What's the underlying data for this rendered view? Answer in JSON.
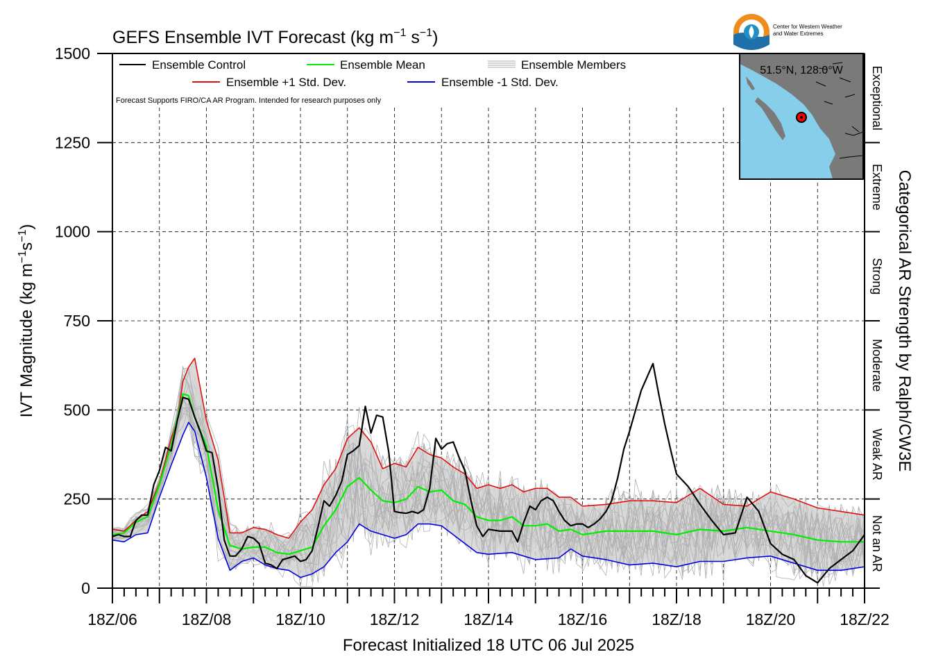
{
  "title_main": "GEFS Ensemble IVT Forecast (kg m",
  "title_exp1": "−1",
  "title_mid": " s",
  "title_exp2": "−1",
  "title_end": ")",
  "ylabel_main": "IVT Magnitude (kg m",
  "ylabel_exp1": "−1",
  "ylabel_mid": "s",
  "ylabel_exp2": "−1",
  "ylabel_end": ")",
  "xlabel": "Forecast Initialized 18 UTC 06 Jul 2025",
  "right_axis_label": "Categorical AR Strength by Ralph/CW3E",
  "note": "Forecast Supports FIRO/CA AR Program. Intended for research purposes only",
  "logo_text_line1": "Center for Western Weather",
  "logo_text_line2": "and Water Extremes",
  "inset_location": "51.5°N, 128.0°W",
  "legend": {
    "control": "Ensemble Control",
    "mean": "Ensemble Mean",
    "members": "Ensemble Members",
    "plus_sd": "Ensemble +1 Std. Dev.",
    "minus_sd": "Ensemble -1 Std. Dev."
  },
  "colors": {
    "control": "#000000",
    "mean": "#00ee00",
    "members": "#aaaaaa",
    "plus_sd": "#e01010",
    "minus_sd": "#0000dd",
    "spread_fill": "#d3d3d3",
    "ocean": "#87ceeb",
    "land": "#7a7a7a"
  },
  "chart_data": {
    "type": "line",
    "x_unit": "forecast day (days since 18Z/06)",
    "xlim": [
      0,
      16
    ],
    "ylim": [
      0,
      1500
    ],
    "x_ticks": [
      0,
      2,
      4,
      6,
      8,
      10,
      12,
      14,
      16
    ],
    "x_tick_labels": [
      "18Z/06",
      "18Z/08",
      "18Z/10",
      "18Z/12",
      "18Z/14",
      "18Z/16",
      "18Z/18",
      "18Z/20",
      "18Z/22"
    ],
    "y_ticks": [
      0,
      250,
      500,
      750,
      1000,
      1250,
      1500
    ],
    "y_tick_labels": [
      "0",
      "250",
      "500",
      "750",
      "1000",
      "1250",
      "1500"
    ],
    "grid": true,
    "legend_position": "top-left",
    "categories": [
      {
        "label": "Not an AR",
        "from": 0,
        "to": 250
      },
      {
        "label": "Weak AR",
        "from": 250,
        "to": 500
      },
      {
        "label": "Moderate",
        "from": 500,
        "to": 750
      },
      {
        "label": "Strong",
        "from": 750,
        "to": 1000
      },
      {
        "label": "Extreme",
        "from": 1000,
        "to": 1250
      },
      {
        "label": "Exceptional",
        "from": 1250,
        "to": 1500
      }
    ],
    "series": [
      {
        "name": "Ensemble Control",
        "points": [
          [
            0,
            145
          ],
          [
            0.13,
            150
          ],
          [
            0.25,
            145
          ],
          [
            0.38,
            145
          ],
          [
            0.5,
            190
          ],
          [
            0.62,
            205
          ],
          [
            0.75,
            205
          ],
          [
            0.88,
            290
          ],
          [
            1,
            330
          ],
          [
            1.13,
            395
          ],
          [
            1.25,
            385
          ],
          [
            1.38,
            470
          ],
          [
            1.5,
            535
          ],
          [
            1.62,
            530
          ],
          [
            1.75,
            480
          ],
          [
            1.88,
            435
          ],
          [
            2,
            385
          ],
          [
            2.12,
            380
          ],
          [
            2.25,
            280
          ],
          [
            2.38,
            135
          ],
          [
            2.5,
            90
          ],
          [
            2.62,
            90
          ],
          [
            2.75,
            110
          ],
          [
            2.88,
            145
          ],
          [
            3,
            140
          ],
          [
            3.12,
            125
          ],
          [
            3.25,
            70
          ],
          [
            3.38,
            65
          ],
          [
            3.5,
            55
          ],
          [
            3.62,
            80
          ],
          [
            3.75,
            85
          ],
          [
            3.88,
            90
          ],
          [
            4,
            75
          ],
          [
            4.12,
            80
          ],
          [
            4.25,
            105
          ],
          [
            4.38,
            175
          ],
          [
            4.5,
            245
          ],
          [
            4.62,
            230
          ],
          [
            4.75,
            260
          ],
          [
            4.88,
            300
          ],
          [
            5,
            375
          ],
          [
            5.12,
            385
          ],
          [
            5.25,
            400
          ],
          [
            5.38,
            510
          ],
          [
            5.5,
            435
          ],
          [
            5.62,
            485
          ],
          [
            5.75,
            480
          ],
          [
            5.88,
            380
          ],
          [
            6,
            215
          ],
          [
            6.12,
            212
          ],
          [
            6.25,
            210
          ],
          [
            6.38,
            215
          ],
          [
            6.5,
            210
          ],
          [
            6.62,
            220
          ],
          [
            6.75,
            280
          ],
          [
            6.88,
            420
          ],
          [
            7,
            390
          ],
          [
            7.12,
            405
          ],
          [
            7.25,
            410
          ],
          [
            7.38,
            365
          ],
          [
            7.5,
            330
          ],
          [
            7.62,
            250
          ],
          [
            7.75,
            175
          ],
          [
            7.88,
            145
          ],
          [
            8,
            165
          ],
          [
            8.25,
            160
          ],
          [
            8.5,
            160
          ],
          [
            8.62,
            130
          ],
          [
            8.75,
            185
          ],
          [
            8.88,
            230
          ],
          [
            9,
            220
          ],
          [
            9.12,
            245
          ],
          [
            9.25,
            255
          ],
          [
            9.38,
            245
          ],
          [
            9.5,
            215
          ],
          [
            9.62,
            190
          ],
          [
            9.75,
            175
          ],
          [
            9.88,
            180
          ],
          [
            10,
            180
          ],
          [
            10.12,
            170
          ],
          [
            10.25,
            180
          ],
          [
            10.38,
            195
          ],
          [
            10.5,
            215
          ],
          [
            10.62,
            245
          ],
          [
            10.75,
            310
          ],
          [
            10.88,
            390
          ],
          [
            11,
            440
          ],
          [
            11.25,
            555
          ],
          [
            11.5,
            630
          ],
          [
            11.62,
            545
          ],
          [
            11.75,
            460
          ],
          [
            11.88,
            385
          ],
          [
            12,
            320
          ],
          [
            12.25,
            285
          ],
          [
            12.5,
            235
          ],
          [
            12.75,
            190
          ],
          [
            13,
            150
          ],
          [
            13.25,
            155
          ],
          [
            13.5,
            255
          ],
          [
            13.75,
            215
          ],
          [
            14,
            125
          ],
          [
            14.25,
            95
          ],
          [
            14.5,
            80
          ],
          [
            14.75,
            35
          ],
          [
            15,
            15
          ],
          [
            15.25,
            55
          ],
          [
            15.5,
            80
          ],
          [
            15.75,
            105
          ],
          [
            16,
            150
          ]
        ]
      },
      {
        "name": "Ensemble Mean",
        "points": [
          [
            0,
            150
          ],
          [
            0.25,
            155
          ],
          [
            0.5,
            185
          ],
          [
            0.75,
            200
          ],
          [
            1,
            290
          ],
          [
            1.25,
            400
          ],
          [
            1.5,
            545
          ],
          [
            1.62,
            540
          ],
          [
            1.75,
            480
          ],
          [
            2,
            400
          ],
          [
            2.25,
            220
          ],
          [
            2.5,
            120
          ],
          [
            2.75,
            110
          ],
          [
            3,
            115
          ],
          [
            3.25,
            115
          ],
          [
            3.5,
            100
          ],
          [
            3.75,
            95
          ],
          [
            4,
            105
          ],
          [
            4.25,
            115
          ],
          [
            4.5,
            175
          ],
          [
            4.75,
            220
          ],
          [
            5,
            285
          ],
          [
            5.25,
            310
          ],
          [
            5.5,
            275
          ],
          [
            5.75,
            245
          ],
          [
            6,
            240
          ],
          [
            6.25,
            250
          ],
          [
            6.5,
            285
          ],
          [
            6.75,
            270
          ],
          [
            7,
            275
          ],
          [
            7.25,
            245
          ],
          [
            7.5,
            235
          ],
          [
            7.75,
            200
          ],
          [
            8,
            190
          ],
          [
            8.25,
            190
          ],
          [
            8.5,
            200
          ],
          [
            8.75,
            175
          ],
          [
            9,
            175
          ],
          [
            9.25,
            180
          ],
          [
            9.5,
            160
          ],
          [
            9.75,
            165
          ],
          [
            10,
            150
          ],
          [
            10.5,
            160
          ],
          [
            11,
            160
          ],
          [
            11.5,
            160
          ],
          [
            12,
            150
          ],
          [
            12.5,
            165
          ],
          [
            13,
            160
          ],
          [
            13.5,
            170
          ],
          [
            14,
            160
          ],
          [
            14.5,
            150
          ],
          [
            15,
            135
          ],
          [
            15.5,
            130
          ],
          [
            16,
            130
          ]
        ]
      },
      {
        "name": "Ensemble +1 Std. Dev.",
        "points": [
          [
            0,
            165
          ],
          [
            0.25,
            160
          ],
          [
            0.5,
            190
          ],
          [
            0.75,
            215
          ],
          [
            1,
            295
          ],
          [
            1.25,
            420
          ],
          [
            1.38,
            470
          ],
          [
            1.5,
            580
          ],
          [
            1.62,
            620
          ],
          [
            1.75,
            645
          ],
          [
            2,
            470
          ],
          [
            2.25,
            360
          ],
          [
            2.5,
            155
          ],
          [
            2.75,
            155
          ],
          [
            3,
            170
          ],
          [
            3.25,
            165
          ],
          [
            3.5,
            150
          ],
          [
            3.75,
            140
          ],
          [
            4,
            185
          ],
          [
            4.25,
            220
          ],
          [
            4.5,
            290
          ],
          [
            4.75,
            335
          ],
          [
            5,
            420
          ],
          [
            5.25,
            450
          ],
          [
            5.5,
            410
          ],
          [
            5.75,
            335
          ],
          [
            6,
            350
          ],
          [
            6.25,
            340
          ],
          [
            6.5,
            395
          ],
          [
            6.75,
            375
          ],
          [
            7,
            365
          ],
          [
            7.25,
            340
          ],
          [
            7.5,
            320
          ],
          [
            7.75,
            280
          ],
          [
            8,
            290
          ],
          [
            8.25,
            280
          ],
          [
            8.5,
            290
          ],
          [
            8.75,
            270
          ],
          [
            9,
            280
          ],
          [
            9.25,
            280
          ],
          [
            9.5,
            255
          ],
          [
            9.75,
            255
          ],
          [
            10,
            230
          ],
          [
            10.5,
            235
          ],
          [
            11,
            245
          ],
          [
            11.5,
            245
          ],
          [
            12,
            240
          ],
          [
            12.5,
            280
          ],
          [
            13,
            235
          ],
          [
            13.5,
            230
          ],
          [
            14,
            270
          ],
          [
            14.5,
            250
          ],
          [
            15,
            225
          ],
          [
            15.5,
            215
          ],
          [
            16,
            205
          ]
        ]
      },
      {
        "name": "Ensemble -1 Std. Dev.",
        "points": [
          [
            0,
            135
          ],
          [
            0.25,
            130
          ],
          [
            0.5,
            150
          ],
          [
            0.75,
            155
          ],
          [
            1,
            255
          ],
          [
            1.25,
            345
          ],
          [
            1.5,
            430
          ],
          [
            1.62,
            465
          ],
          [
            1.75,
            440
          ],
          [
            2,
            310
          ],
          [
            2.25,
            140
          ],
          [
            2.5,
            50
          ],
          [
            2.75,
            75
          ],
          [
            3,
            85
          ],
          [
            3.25,
            65
          ],
          [
            3.5,
            55
          ],
          [
            3.75,
            50
          ],
          [
            4,
            30
          ],
          [
            4.25,
            40
          ],
          [
            4.5,
            60
          ],
          [
            4.75,
            100
          ],
          [
            5,
            130
          ],
          [
            5.25,
            180
          ],
          [
            5.5,
            160
          ],
          [
            5.75,
            150
          ],
          [
            6,
            140
          ],
          [
            6.25,
            150
          ],
          [
            6.5,
            180
          ],
          [
            6.75,
            180
          ],
          [
            7,
            175
          ],
          [
            7.25,
            150
          ],
          [
            7.5,
            125
          ],
          [
            7.75,
            100
          ],
          [
            8,
            95
          ],
          [
            8.5,
            100
          ],
          [
            9,
            80
          ],
          [
            9.5,
            85
          ],
          [
            9.75,
            110
          ],
          [
            10,
            90
          ],
          [
            10.5,
            80
          ],
          [
            11,
            65
          ],
          [
            11.5,
            70
          ],
          [
            12,
            60
          ],
          [
            12.5,
            75
          ],
          [
            13,
            75
          ],
          [
            13.5,
            85
          ],
          [
            14,
            90
          ],
          [
            14.5,
            70
          ],
          [
            15,
            50
          ],
          [
            15.5,
            50
          ],
          [
            16,
            60
          ]
        ]
      }
    ],
    "spread_band": {
      "name": "Ensemble Members",
      "description_bounds": "+/-1 std. dev."
    }
  }
}
